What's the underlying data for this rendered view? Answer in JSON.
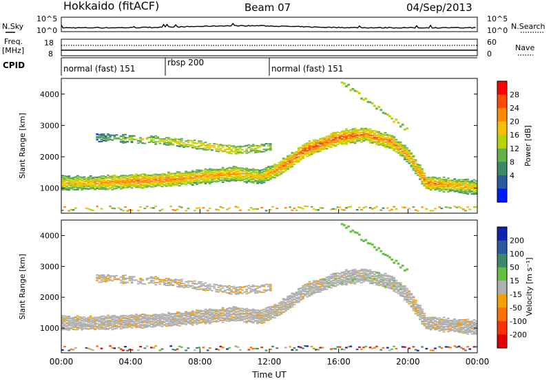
{
  "header": {
    "station": "Hokkaido (fitACF)",
    "beam": "Beam 07",
    "date": "04/Sep/2013"
  },
  "nsky_panel": {
    "left_label": "N.Sky",
    "left_ticks": [
      "10^5",
      "10^0"
    ],
    "right_ticks": [
      "10^5",
      "10^0"
    ],
    "right_label": "N.Search"
  },
  "freq_panel": {
    "left_label_line1": "Freq.",
    "left_label_line2": "[MHz]",
    "left_ticks": [
      "18",
      "8"
    ],
    "right_ticks": [
      "60",
      "0"
    ],
    "right_label": "Nave"
  },
  "cpid_panel": {
    "label": "CPID",
    "segments": [
      {
        "name": "normal (fast) 151",
        "start_hour": 0,
        "end_hour": 6
      },
      {
        "name": "rbsp 200",
        "start_hour": 6,
        "end_hour": 12
      },
      {
        "name": "normal (fast) 151",
        "start_hour": 12,
        "end_hour": 24
      }
    ]
  },
  "power_panel": {
    "ylabel": "Slant Range [km]",
    "colorbar_label": "Power [dB]",
    "colorbar_ticks": [
      "28",
      "24",
      "20",
      "16",
      "12",
      "8",
      "4"
    ],
    "colorbar_colors": [
      "#ff0000",
      "#ff4a00",
      "#ff8c00",
      "#f5c000",
      "#b8d400",
      "#66b24a",
      "#3d8a6a",
      "#2a5aa0",
      "#0018ff"
    ]
  },
  "velocity_panel": {
    "ylabel": "Slant Range [km]",
    "colorbar_label": "Velocity [m s⁻¹]",
    "colorbar_ticks": [
      "200",
      "100",
      "50",
      "15",
      "-15",
      "-50",
      "-100",
      "-200"
    ],
    "colorbar_colors": [
      "#1020b0",
      "#2a5aa0",
      "#3d8a6a",
      "#66c040",
      "#b0b0b0",
      "#f5a000",
      "#ff7000",
      "#ff3000",
      "#e00000"
    ]
  },
  "xaxis": {
    "label": "Time UT",
    "ticks": [
      "00:00",
      "04:00",
      "08:00",
      "12:00",
      "16:00",
      "20:00",
      "00:00"
    ]
  },
  "chart_data": {
    "type": "heatmap",
    "x_range_hours": [
      0,
      24
    ],
    "y_range_km": [
      200,
      4500
    ],
    "y_ticks": [
      1000,
      2000,
      3000,
      4000
    ],
    "power_range_db": [
      0,
      30
    ],
    "velocity_range_ms": [
      -250,
      250
    ],
    "echo_traces": [
      {
        "name": "main_band",
        "x_hours": [
          0,
          2,
          4,
          6,
          8,
          10,
          11.5,
          12.5,
          14,
          16,
          17.5,
          19,
          20,
          21,
          24
        ],
        "y_km": [
          1150,
          1150,
          1200,
          1250,
          1350,
          1450,
          1350,
          1600,
          2200,
          2600,
          2700,
          2450,
          2000,
          1150,
          1000
        ],
        "power_db": [
          22,
          24,
          26,
          26,
          24,
          24,
          22,
          26,
          28,
          28,
          26,
          26,
          24,
          26,
          22
        ]
      },
      {
        "name": "upper_band",
        "x_hours": [
          2,
          4,
          6,
          8,
          10,
          12
        ],
        "y_km": [
          2600,
          2550,
          2500,
          2350,
          2200,
          2300
        ],
        "power_db": [
          12,
          18,
          20,
          22,
          22,
          18
        ]
      }
    ]
  }
}
